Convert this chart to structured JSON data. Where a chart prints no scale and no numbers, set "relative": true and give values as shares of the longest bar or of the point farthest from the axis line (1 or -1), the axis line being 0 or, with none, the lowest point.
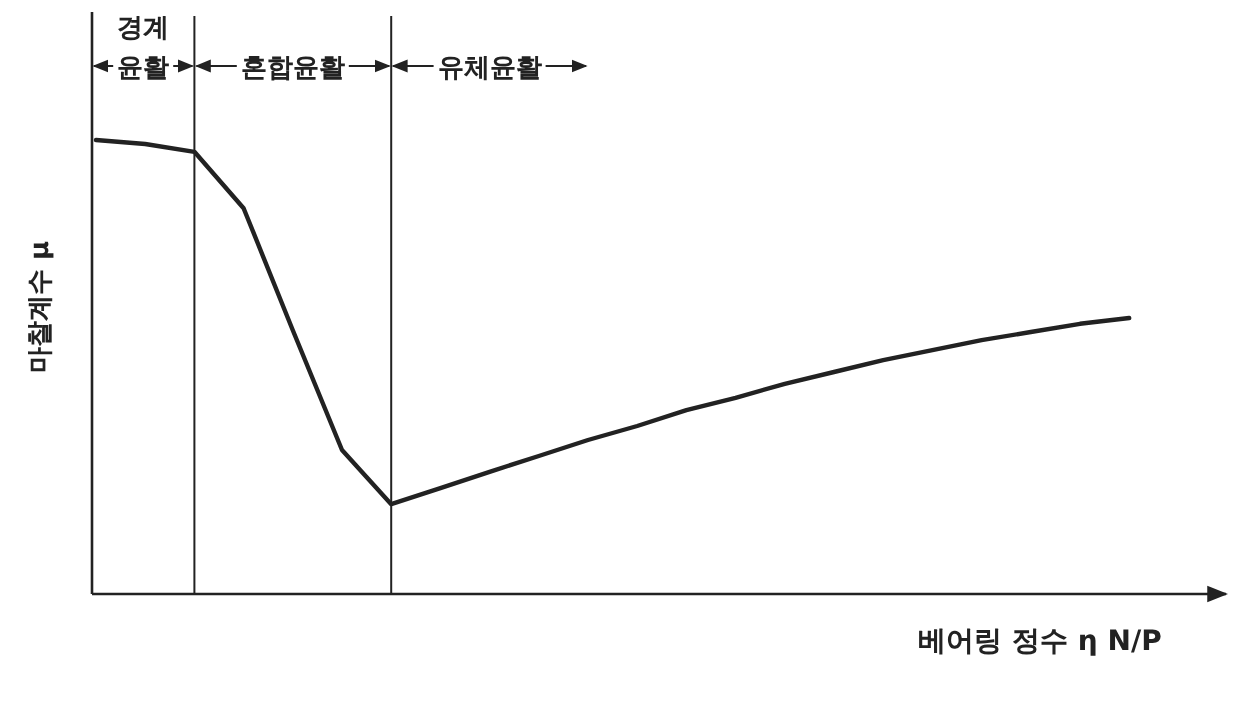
{
  "chart_data": {
    "type": "line",
    "relative": true,
    "ylabel": "마찰계수 μ",
    "xlabel": "베어링 정수 η N/P",
    "categories": [
      null,
      null,
      null,
      null,
      null,
      null,
      null,
      null,
      null,
      null,
      null,
      null,
      null,
      null,
      null,
      null,
      null,
      null,
      null,
      null,
      null,
      null
    ],
    "series": [
      {
        "color": "#222222",
        "values": [
          1.0,
          0.991,
          0.974,
          0.85,
          0.581,
          0.317,
          0.198,
          0.233,
          0.269,
          0.304,
          0.339,
          0.37,
          0.405,
          0.432,
          0.463,
          0.489,
          0.515,
          0.537,
          0.559,
          0.577,
          0.595,
          0.608
        ]
      }
    ],
    "annotations": [
      "경계\n윤활",
      "혼합윤활",
      "유체윤활"
    ]
  }
}
